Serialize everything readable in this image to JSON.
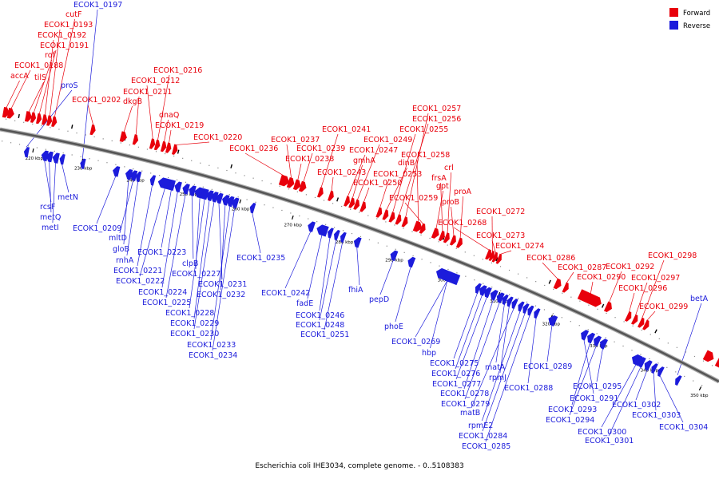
{
  "caption": "Escherichia coli IHE3034, complete genome. - 0..5108383",
  "legend": {
    "forward": {
      "label": "Forward",
      "color": "#e8000b"
    },
    "reverse": {
      "label": "Reverse",
      "color": "#1c1cdb"
    }
  },
  "scale_labels": [
    "220 kbp",
    "230 kbp",
    "240 kbp",
    "250 kbp",
    "260 kbp",
    "270 kbp",
    "280 kbp",
    "290 kbp",
    "300 kbp",
    "310 kbp",
    "320 kbp",
    "330 kbp",
    "340 kbp",
    "350 kbp"
  ],
  "forward_genes": [
    "accA",
    "ECOK1_0188",
    "tilS",
    "rof",
    "ECOK1_0191",
    "ECOK1_0192",
    "ECOK1_0193",
    "cutF",
    "ECOK1_0202",
    "dkgB",
    "ECOK1_0211",
    "ECOK1_0212",
    "ECOK1_0216",
    "dnaQ",
    "ECOK1_0219",
    "ECOK1_0220",
    "ECOK1_0236",
    "ECOK1_0237",
    "ECOK1_0238",
    "ECOK1_0239",
    "ECOK1_0241",
    "ECOK1_0243",
    "ECOK1_0247",
    "gmhA",
    "ECOK1_0249",
    "ECOK1_0250",
    "ECOK1_0253",
    "dinB",
    "ECOK1_0255",
    "ECOK1_0256",
    "ECOK1_0257",
    "ECOK1_0258",
    "ECOK1_0259",
    "gpt",
    "frsA",
    "crl",
    "proB",
    "proA",
    "ECOK1_0268",
    "ECOK1_0272",
    "ECOK1_0273",
    "ECOK1_0274",
    "ECOK1_0286",
    "ECOK1_0287",
    "ECOK1_0290",
    "ECOK1_0292",
    "ECOK1_0296",
    "ECOK1_0297",
    "ECOK1_0298",
    "ECOK1_0299"
  ],
  "reverse_genes": [
    "ECOK1_0197",
    "proS",
    "rcsF",
    "metQ",
    "metI",
    "metN",
    "ECOK1_0209",
    "mltD",
    "gloB",
    "rnhA",
    "ECOK1_0221",
    "ECOK1_0222",
    "ECOK1_0223",
    "ECOK1_0224",
    "ECOK1_0225",
    "clpB",
    "ECOK1_0227",
    "ECOK1_0228",
    "ECOK1_0229",
    "ECOK1_0230",
    "ECOK1_0231",
    "ECOK1_0232",
    "ECOK1_0233",
    "ECOK1_0234",
    "ECOK1_0235",
    "ECOK1_0242",
    "fadE",
    "ECOK1_0246",
    "ECOK1_0248",
    "ECOK1_0251",
    "fhiA",
    "pepD",
    "phoE",
    "ECOK1_0269",
    "hbp",
    "ECOK1_0275",
    "ECOK1_0276",
    "ECOK1_0277",
    "ECOK1_0278",
    "ECOK1_0279",
    "matA",
    "rpmJ",
    "matB",
    "rpmE2",
    "ECOK1_0284",
    "ECOK1_0285",
    "ECOK1_0288",
    "ECOK1_0289",
    "ECOK1_0291",
    "ECOK1_0293",
    "ECOK1_0294",
    "ECOK1_0295",
    "ECOK1_0300",
    "ECOK1_0301",
    "ECOK1_0302",
    "ECOK1_0303",
    "ECOK1_0304",
    "betA"
  ]
}
